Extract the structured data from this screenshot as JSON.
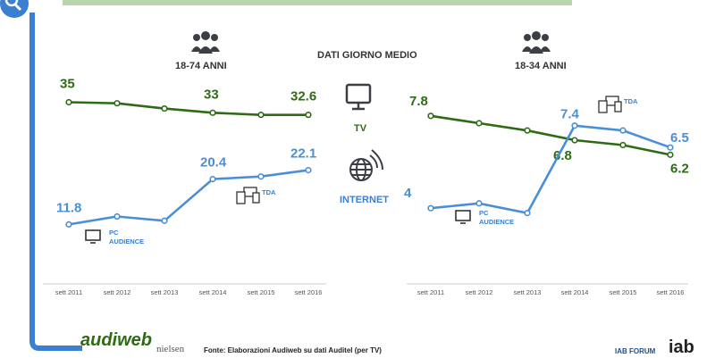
{
  "header": {
    "center_label": "DATI GIORNO MEDIO",
    "left_group": "18-74 ANNI",
    "right_group": "18-34 ANNI",
    "tv_label": "TV",
    "internet_label": "INTERNET"
  },
  "footer": {
    "source": "Fonte: Elaborazioni Audiweb su dati Auditel (per TV)",
    "brand_left": "audiweb",
    "brand_sub": "nielsen",
    "brand_right": "IAB FORUM",
    "brand_right_logo": "iab"
  },
  "colors": {
    "tv": "#2e6b14",
    "internet": "#4a8fd6",
    "accent": "#3a7fd0",
    "grid": "#cccccc"
  },
  "icons": [
    "search-icon",
    "people-icon",
    "tv-icon",
    "globe-wifi-icon",
    "desktop-icon",
    "devices-icon"
  ],
  "chart_data": [
    {
      "type": "line",
      "group": "18-74 ANNI",
      "categories": [
        "sett 2011",
        "sett 2012",
        "sett 2013",
        "sett 2014",
        "sett 2015",
        "sett 2016"
      ],
      "ylim": [
        0,
        40
      ],
      "series": [
        {
          "name": "TV",
          "values": [
            35,
            34.8,
            33.8,
            33,
            32.6,
            32.6
          ],
          "labels": [
            "35",
            "",
            "",
            "33",
            "",
            "32.6"
          ]
        },
        {
          "name": "INTERNET",
          "values": [
            11.8,
            13.3,
            12.5,
            20.4,
            20.9,
            22.1
          ],
          "labels": [
            "11.8",
            "",
            "",
            "20.4",
            "",
            "22.1"
          ]
        }
      ],
      "annotations": [
        {
          "text": "PC AUDIENCE",
          "icon": "desktop-icon"
        },
        {
          "text": "TDA",
          "icon": "devices-icon"
        }
      ]
    },
    {
      "type": "line",
      "group": "18-34 ANNI",
      "categories": [
        "sett 2011",
        "sett 2012",
        "sett 2013",
        "sett 2014",
        "sett 2015",
        "sett 2016"
      ],
      "ylim": [
        0,
        9
      ],
      "series": [
        {
          "name": "TV",
          "values": [
            7.8,
            7.5,
            7.2,
            6.8,
            6.6,
            6.2
          ],
          "labels": [
            "7.8",
            "",
            "",
            "6.8",
            "",
            "6.2"
          ]
        },
        {
          "name": "INTERNET",
          "values": [
            4,
            4.2,
            3.8,
            7.4,
            7.2,
            6.5
          ],
          "labels": [
            "4",
            "",
            "",
            "7.4",
            "",
            "6.5"
          ]
        }
      ],
      "annotations": [
        {
          "text": "PC AUDIENCE",
          "icon": "desktop-icon"
        },
        {
          "text": "TDA",
          "icon": "devices-icon"
        }
      ]
    }
  ]
}
